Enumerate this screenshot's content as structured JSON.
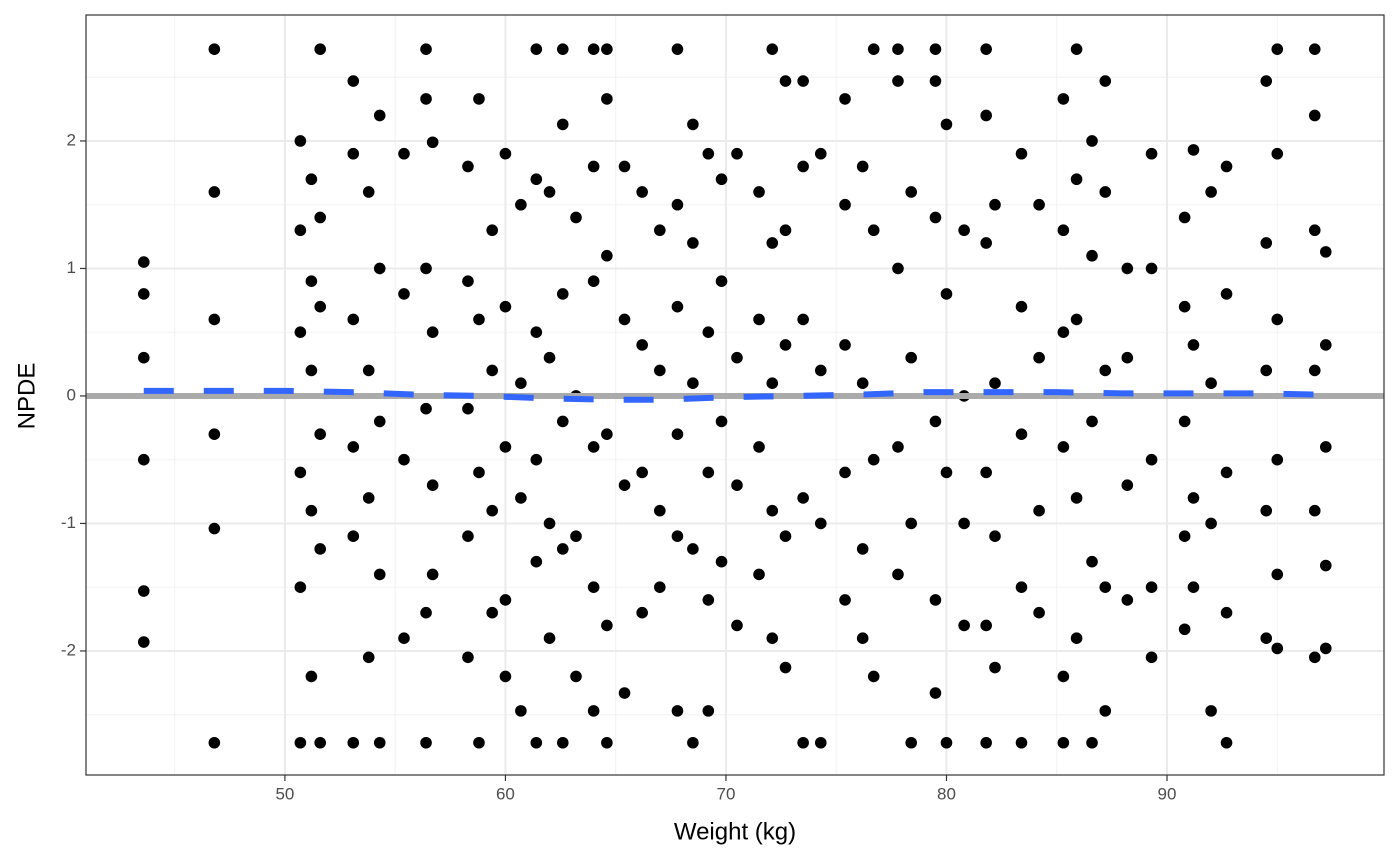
{
  "chart_data": {
    "type": "scatter",
    "x_label": "Weight (kg)",
    "y_label": "NPDE",
    "xlim": [
      40.98,
      99.84
    ],
    "ylim": [
      -2.973,
      2.988
    ],
    "xticks": [
      50,
      60,
      70,
      80,
      90
    ],
    "yticks": [
      -2,
      -1,
      0,
      1,
      2
    ],
    "grid": true,
    "points": {
      "color": "#000000",
      "x": [
        43.6,
        43.6,
        43.6,
        43.6,
        43.6,
        43.6,
        46.8,
        46.8,
        46.8,
        46.8,
        46.8,
        46.8,
        50.7,
        50.7,
        50.7,
        50.7,
        50.7,
        50.7,
        51.2,
        51.2,
        51.2,
        51.2,
        51.2,
        51.6,
        51.6,
        51.6,
        51.6,
        51.6,
        51.6,
        53.1,
        53.1,
        53.1,
        53.1,
        53.1,
        53.1,
        53.8,
        53.8,
        53.8,
        53.8,
        54.3,
        54.3,
        54.3,
        54.3,
        54.3,
        55.4,
        55.4,
        55.4,
        55.4,
        56.4,
        56.4,
        56.4,
        56.4,
        56.4,
        56.4,
        56.7,
        56.7,
        56.7,
        56.7,
        58.3,
        58.3,
        58.3,
        58.3,
        58.3,
        58.8,
        58.8,
        58.8,
        58.8,
        59.4,
        59.4,
        59.4,
        59.4,
        60.0,
        60.0,
        60.0,
        60.0,
        60.0,
        60.7,
        60.7,
        60.7,
        60.7,
        61.4,
        61.4,
        61.4,
        61.4,
        61.4,
        61.4,
        62.0,
        62.0,
        62.0,
        62.0,
        62.6,
        62.6,
        62.6,
        62.6,
        62.6,
        62.6,
        63.2,
        63.2,
        63.2,
        63.2,
        64.0,
        64.0,
        64.0,
        64.0,
        64.0,
        64.0,
        64.6,
        64.6,
        64.6,
        64.6,
        64.6,
        64.6,
        65.4,
        65.4,
        65.4,
        65.4,
        66.2,
        66.2,
        66.2,
        66.2,
        67.0,
        67.0,
        67.0,
        67.0,
        67.8,
        67.8,
        67.8,
        67.8,
        67.8,
        67.8,
        68.5,
        68.5,
        68.5,
        68.5,
        68.5,
        69.2,
        69.2,
        69.2,
        69.2,
        69.2,
        69.8,
        69.8,
        69.8,
        69.8,
        70.5,
        70.5,
        70.5,
        70.5,
        71.5,
        71.5,
        71.5,
        71.5,
        72.1,
        72.1,
        72.1,
        72.1,
        72.1,
        72.7,
        72.7,
        72.7,
        72.7,
        72.7,
        73.5,
        73.5,
        73.5,
        73.5,
        73.5,
        74.3,
        74.3,
        74.3,
        74.3,
        75.4,
        75.4,
        75.4,
        75.4,
        75.4,
        76.2,
        76.2,
        76.2,
        76.2,
        76.7,
        76.7,
        76.7,
        76.7,
        77.8,
        77.8,
        77.8,
        77.8,
        77.8,
        78.4,
        78.4,
        78.4,
        78.4,
        79.5,
        79.5,
        79.5,
        79.5,
        79.5,
        79.5,
        80.0,
        80.0,
        80.0,
        80.0,
        80.8,
        80.8,
        80.8,
        80.8,
        81.8,
        81.8,
        81.8,
        81.8,
        81.8,
        81.8,
        82.2,
        82.2,
        82.2,
        82.2,
        83.4,
        83.4,
        83.4,
        83.4,
        83.4,
        84.2,
        84.2,
        84.2,
        84.2,
        85.3,
        85.3,
        85.3,
        85.3,
        85.3,
        85.3,
        85.9,
        85.9,
        85.9,
        85.9,
        85.9,
        86.6,
        86.6,
        86.6,
        86.6,
        86.6,
        87.2,
        87.2,
        87.2,
        87.2,
        87.2,
        88.2,
        88.2,
        88.2,
        88.2,
        89.3,
        89.3,
        89.3,
        89.3,
        89.3,
        90.8,
        90.8,
        90.8,
        90.8,
        90.8,
        91.2,
        91.2,
        91.2,
        91.2,
        92.0,
        92.0,
        92.0,
        92.0,
        92.7,
        92.7,
        92.7,
        92.7,
        92.7,
        94.5,
        94.5,
        94.5,
        94.5,
        94.5,
        95.0,
        95.0,
        95.0,
        95.0,
        95.0,
        95.0,
        96.7,
        96.7,
        96.7,
        96.7,
        96.7,
        96.7,
        97.2,
        97.2,
        97.2,
        97.2,
        97.2
      ],
      "values": [
        1.05,
        0.8,
        0.3,
        -0.5,
        -1.53,
        -1.93,
        2.72,
        1.6,
        0.6,
        -0.3,
        -1.04,
        -2.72,
        2.0,
        1.3,
        0.5,
        -0.6,
        -1.5,
        -2.72,
        1.7,
        0.9,
        0.2,
        -0.9,
        -2.2,
        2.72,
        1.4,
        0.7,
        -0.3,
        -1.2,
        -2.72,
        2.47,
        1.9,
        0.6,
        -0.4,
        -1.1,
        -2.72,
        1.6,
        0.2,
        -0.8,
        -2.05,
        2.2,
        1.0,
        -0.2,
        -1.4,
        -2.72,
        1.9,
        0.8,
        -0.5,
        -1.9,
        2.72,
        2.33,
        1.0,
        -0.1,
        -1.7,
        -2.72,
        1.99,
        0.5,
        -0.7,
        -1.4,
        1.8,
        0.9,
        -0.1,
        -1.1,
        -2.05,
        2.33,
        0.6,
        -0.6,
        -2.72,
        1.3,
        0.2,
        -0.9,
        -1.7,
        1.9,
        0.7,
        -0.4,
        -1.6,
        -2.2,
        1.5,
        0.1,
        -0.8,
        -2.47,
        2.72,
        1.7,
        0.5,
        -0.5,
        -1.3,
        -2.72,
        1.6,
        0.3,
        -1.0,
        -1.9,
        2.72,
        2.13,
        0.8,
        -0.2,
        -1.2,
        -2.72,
        1.4,
        0.0,
        -1.1,
        -2.2,
        2.72,
        1.8,
        0.9,
        -0.4,
        -1.5,
        -2.47,
        2.72,
        2.33,
        1.1,
        -0.3,
        -1.8,
        -2.72,
        1.8,
        0.6,
        -0.7,
        -2.33,
        1.6,
        0.4,
        -0.6,
        -1.7,
        1.3,
        0.2,
        -0.9,
        -1.5,
        2.72,
        1.5,
        0.7,
        -0.3,
        -1.1,
        -2.47,
        2.13,
        1.2,
        0.1,
        -1.2,
        -2.72,
        1.9,
        0.5,
        -0.6,
        -1.6,
        -2.47,
        1.7,
        0.9,
        -0.2,
        -1.3,
        1.9,
        0.3,
        -0.7,
        -1.8,
        1.6,
        0.6,
        -0.4,
        -1.4,
        2.72,
        1.2,
        0.1,
        -0.9,
        -1.9,
        2.47,
        1.3,
        0.4,
        -1.1,
        -2.13,
        2.47,
        1.8,
        0.6,
        -0.8,
        -2.72,
        1.9,
        0.2,
        -1.0,
        -2.72,
        2.33,
        1.5,
        0.4,
        -0.6,
        -1.6,
        1.8,
        0.1,
        -1.2,
        -1.9,
        2.72,
        1.3,
        -0.5,
        -2.2,
        2.72,
        2.47,
        1.0,
        -0.4,
        -1.4,
        1.6,
        0.3,
        -1.0,
        -2.72,
        2.72,
        2.47,
        1.4,
        -0.2,
        -1.6,
        -2.33,
        2.13,
        0.8,
        -0.6,
        -2.72,
        1.3,
        0.0,
        -1.0,
        -1.8,
        2.72,
        2.2,
        1.2,
        -0.6,
        -1.8,
        -2.72,
        1.5,
        0.1,
        -1.1,
        -2.13,
        1.9,
        0.7,
        -0.3,
        -1.5,
        -2.72,
        1.5,
        0.3,
        -0.9,
        -1.7,
        2.33,
        1.3,
        0.5,
        -0.4,
        -2.2,
        -2.72,
        2.72,
        1.7,
        0.6,
        -0.8,
        -1.9,
        2.0,
        1.1,
        -0.2,
        -1.3,
        -2.72,
        2.47,
        1.6,
        0.2,
        -1.5,
        -2.47,
        1.0,
        0.3,
        -0.7,
        -1.6,
        1.9,
        1.0,
        -0.5,
        -1.5,
        -2.05,
        1.4,
        0.7,
        -0.2,
        -1.1,
        -1.83,
        1.93,
        0.4,
        -0.8,
        -1.5,
        1.6,
        0.1,
        -1.0,
        -2.47,
        1.8,
        0.8,
        -0.6,
        -1.7,
        -2.72,
        2.47,
        1.2,
        0.2,
        -0.9,
        -1.9,
        2.72,
        1.9,
        0.6,
        -0.5,
        -1.4,
        -1.98,
        2.72,
        2.2,
        1.3,
        0.2,
        -0.9,
        -2.05,
        1.13,
        0.4,
        -0.4,
        -1.33,
        -1.98
      ]
    },
    "reference_line": {
      "value": 0,
      "color": "#aaaaaa"
    },
    "trend": {
      "color": "#3366ff",
      "dashed": true,
      "x": [
        43.6,
        47,
        50,
        53,
        56,
        59,
        62,
        65,
        67,
        70,
        73,
        76,
        79,
        82,
        85,
        88,
        91,
        94,
        97.2
      ],
      "values": [
        0.04,
        0.04,
        0.04,
        0.03,
        0.01,
        0.0,
        -0.02,
        -0.03,
        -0.03,
        -0.01,
        0.0,
        0.01,
        0.03,
        0.03,
        0.03,
        0.02,
        0.02,
        0.02,
        0.01
      ]
    }
  }
}
